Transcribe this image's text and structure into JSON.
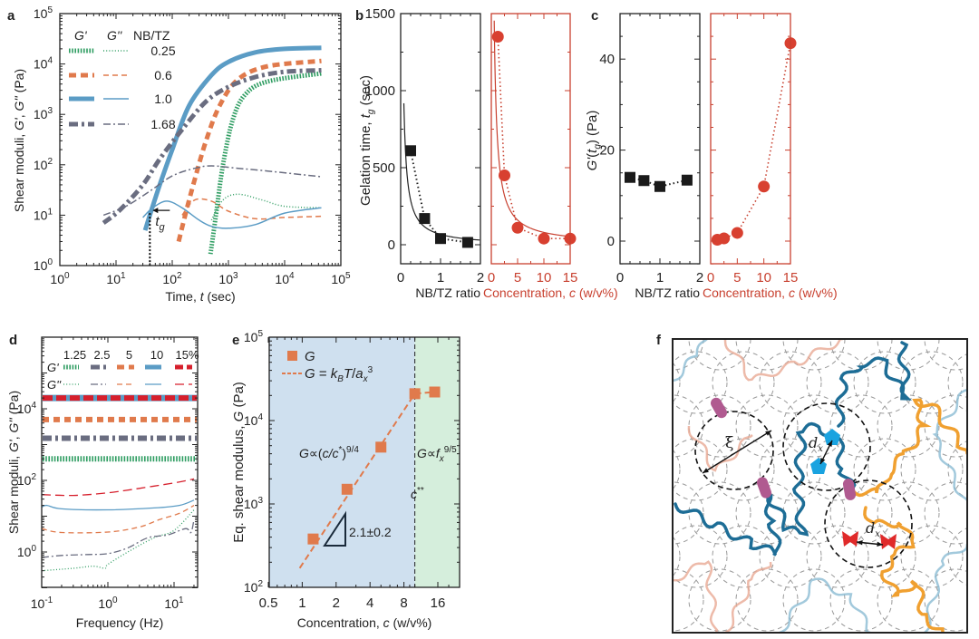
{
  "panel_labels": {
    "a": "a",
    "b": "b",
    "c": "c",
    "d": "d",
    "e": "e",
    "f": "f"
  },
  "chart_data": [
    {
      "panel": "a",
      "type": "line",
      "xscale": "log",
      "yscale": "log",
      "xlim": [
        1,
        100000
      ],
      "ylim": [
        1,
        100000
      ],
      "x_tick_exponents": [
        0,
        1,
        2,
        3,
        4,
        5
      ],
      "y_tick_exponents": [
        0,
        1,
        2,
        3,
        4,
        5
      ],
      "xlabel": [
        {
          "t": "Time, "
        },
        {
          "t": "t",
          "i": 1
        },
        {
          "t": " (sec)"
        }
      ],
      "ylabel": [
        {
          "t": "Shear moduli, "
        },
        {
          "t": "G'",
          "i": 1
        },
        {
          "t": ", "
        },
        {
          "t": "G''",
          "i": 1
        },
        {
          "t": " (Pa)"
        }
      ],
      "legend": {
        "g1": "G'",
        "g2": "G''",
        "ratio": "NB/TZ"
      },
      "series": [
        {
          "name": "0.25",
          "color": "#2f9d62",
          "style": "dotted",
          "G1": [
            [
              480,
              1.7
            ],
            [
              600,
              10
            ],
            [
              800,
              100
            ],
            [
              1200,
              800
            ],
            [
              2000,
              2500
            ],
            [
              5000,
              4500
            ],
            [
              45000,
              6500
            ]
          ],
          "G2": [
            [
              500,
              8
            ],
            [
              800,
              20
            ],
            [
              1500,
              26
            ],
            [
              4000,
              20
            ],
            [
              10000,
              15
            ],
            [
              45000,
              14
            ]
          ]
        },
        {
          "name": "0.6",
          "color": "#e07a4c",
          "style": "dashed",
          "G1": [
            [
              130,
              3
            ],
            [
              170,
              10
            ],
            [
              250,
              50
            ],
            [
              400,
              300
            ],
            [
              700,
              1500
            ],
            [
              1500,
              5000
            ],
            [
              5000,
              9000
            ],
            [
              45000,
              11500
            ]
          ],
          "G2": [
            [
              150,
              10
            ],
            [
              250,
              20
            ],
            [
              500,
              19
            ],
            [
              1000,
              12
            ],
            [
              3000,
              8.5
            ],
            [
              10000,
              9
            ],
            [
              45000,
              9.5
            ]
          ]
        },
        {
          "name": "1.0",
          "color": "#5b9cc5",
          "style": "solid",
          "G1": [
            [
              33,
              5
            ],
            [
              40,
              10
            ],
            [
              60,
              40
            ],
            [
              100,
              200
            ],
            [
              200,
              1500
            ],
            [
              500,
              6000
            ],
            [
              1000,
              11000
            ],
            [
              3000,
              17000
            ],
            [
              10000,
              20000
            ],
            [
              45000,
              21000
            ]
          ],
          "G2": [
            [
              30,
              9
            ],
            [
              45,
              14
            ],
            [
              80,
              19
            ],
            [
              150,
              14
            ],
            [
              300,
              8
            ],
            [
              500,
              6
            ],
            [
              1000,
              5.5
            ],
            [
              3000,
              6.5
            ],
            [
              10000,
              11
            ],
            [
              45000,
              14
            ]
          ]
        },
        {
          "name": "1.68",
          "color": "#6a6d80",
          "style": "dashdot",
          "G1": [
            [
              6,
              7
            ],
            [
              12,
              13
            ],
            [
              30,
              40
            ],
            [
              60,
              130
            ],
            [
              150,
              500
            ],
            [
              400,
              1800
            ],
            [
              1000,
              3500
            ],
            [
              3000,
              5500
            ],
            [
              10000,
              7000
            ],
            [
              45000,
              7500
            ]
          ],
          "G2": [
            [
              6,
              10
            ],
            [
              15,
              15
            ],
            [
              40,
              30
            ],
            [
              100,
              60
            ],
            [
              250,
              85
            ],
            [
              500,
              95
            ],
            [
              1500,
              85
            ],
            [
              5000,
              75
            ],
            [
              45000,
              58
            ]
          ]
        }
      ],
      "annotation": {
        "t": "t",
        "sub": "g",
        "x": 40,
        "y": 11
      }
    },
    {
      "panel": "b",
      "type": "scatter",
      "ylabel": [
        {
          "t": "Gelation time, "
        },
        {
          "t": "t",
          "i": 1
        },
        {
          "t": "g",
          "i": 1,
          "sub": 1
        },
        {
          "t": " (sec)"
        }
      ],
      "ylim": [
        -120,
        1500
      ],
      "y_ticks": [
        0,
        500,
        1000,
        1500
      ],
      "left": {
        "xlabel": "NB/TZ ratio",
        "xlim": [
          0,
          2
        ],
        "x_ticks": [
          0,
          1,
          2
        ],
        "x": [
          0.25,
          0.6,
          1.0,
          1.68
        ],
        "y": [
          610,
          170,
          40,
          15
        ],
        "fit": "74/x-7"
      },
      "right": {
        "xlabel": [
          {
            "t": "Concentration, "
          },
          {
            "t": "c",
            "i": 1
          },
          {
            "t": " (w/v%)"
          }
        ],
        "xlim": [
          0,
          15
        ],
        "x_ticks": [
          0,
          5,
          10,
          15
        ],
        "x": [
          1.25,
          2.5,
          5,
          10,
          15
        ],
        "y": [
          1350,
          450,
          110,
          40,
          40
        ],
        "fit": "800/x"
      }
    },
    {
      "panel": "c",
      "type": "scatter",
      "ylabel": [
        {
          "t": "G'",
          "i": 1
        },
        {
          "t": "("
        },
        {
          "t": "t",
          "i": 1
        },
        {
          "t": "g",
          "i": 1,
          "sub": 1
        },
        {
          "t": ") (Pa)"
        }
      ],
      "ylim": [
        -5,
        50
      ],
      "y_ticks": [
        0,
        20,
        40
      ],
      "left": {
        "xlabel": "NB/TZ ratio",
        "xlim": [
          0,
          2
        ],
        "x_ticks": [
          0,
          1,
          2
        ],
        "x": [
          0.25,
          0.6,
          1.0,
          1.68
        ],
        "y": [
          14,
          13.3,
          12,
          13.4
        ]
      },
      "right": {
        "xlabel": [
          {
            "t": "Concentration, "
          },
          {
            "t": "c",
            "i": 1
          },
          {
            "t": " (w/v%)"
          }
        ],
        "xlim": [
          0,
          15
        ],
        "x_ticks": [
          0,
          5,
          10,
          15
        ],
        "x": [
          1.25,
          2.5,
          5,
          10,
          15
        ],
        "y": [
          0.3,
          0.6,
          1.8,
          12,
          43.5
        ]
      }
    },
    {
      "panel": "d",
      "type": "line",
      "xscale": "log",
      "yscale": "log",
      "xlim": [
        0.1,
        22
      ],
      "ylim": [
        0.1,
        1000000
      ],
      "x_tick_exponents": [
        -1,
        0,
        1
      ],
      "y_tick_exponents": [
        0,
        2,
        4
      ],
      "xlabel": "Frequency (Hz)",
      "ylabel": [
        {
          "t": "Shear moduli, "
        },
        {
          "t": "G'",
          "i": 1
        },
        {
          "t": ", "
        },
        {
          "t": "G''",
          "i": 1
        },
        {
          "t": " (Pa)"
        }
      ],
      "legend": {
        "g1": "G'",
        "g2": "G''"
      },
      "series": [
        {
          "name": "1.25",
          "color": "#2f9d62",
          "style": "dotted",
          "G1": 400,
          "G2": [
            [
              0.1,
              0.3
            ],
            [
              0.3,
              0.35
            ],
            [
              0.6,
              0.4
            ],
            [
              0.9,
              0.35
            ],
            [
              1,
              0.45
            ],
            [
              2,
              1
            ],
            [
              5,
              2.5
            ],
            [
              10,
              4
            ],
            [
              20,
              15
            ]
          ]
        },
        {
          "name": "2.5",
          "color": "#6a6d80",
          "style": "dashdot",
          "G1": 1500,
          "G2": [
            [
              0.1,
              0.7
            ],
            [
              0.2,
              0.8
            ],
            [
              0.5,
              0.85
            ],
            [
              1,
              0.9
            ],
            [
              2,
              1.3
            ],
            [
              4,
              2.5
            ],
            [
              8,
              3
            ],
            [
              15,
              4.5
            ],
            [
              18,
              3.5
            ],
            [
              20,
              8
            ]
          ]
        },
        {
          "name": "5",
          "color": "#e07a4c",
          "style": "dashed",
          "G1": 5000,
          "G2": [
            [
              0.1,
              4.5
            ],
            [
              0.2,
              3.5
            ],
            [
              1,
              3.6
            ],
            [
              3,
              5
            ],
            [
              6,
              8
            ],
            [
              12,
              12
            ],
            [
              20,
              20
            ]
          ]
        },
        {
          "name": "10",
          "color": "#5b9cc5",
          "style": "solid",
          "G1": 20000,
          "G2": [
            [
              0.1,
              18
            ],
            [
              0.12,
              20
            ],
            [
              0.2,
              16
            ],
            [
              1,
              15
            ],
            [
              5,
              17
            ],
            [
              12,
              20
            ],
            [
              20,
              28
            ]
          ]
        },
        {
          "name": "15%",
          "color": "#d61f2c",
          "style": "longdash",
          "G1": 20000,
          "G2": [
            [
              0.1,
              40
            ],
            [
              0.3,
              38
            ],
            [
              1,
              45
            ],
            [
              3,
              60
            ],
            [
              10,
              85
            ],
            [
              20,
              110
            ]
          ]
        }
      ]
    },
    {
      "panel": "e",
      "type": "scatter",
      "xscale": "log2",
      "yscale": "log",
      "xlim": [
        0.5,
        25
      ],
      "ylim": [
        100,
        100000
      ],
      "x_ticks": [
        0.5,
        1,
        2,
        4,
        8,
        16
      ],
      "y_tick_exponents": [
        2,
        3,
        4,
        5
      ],
      "xlabel": [
        {
          "t": "Concentration, "
        },
        {
          "t": "c",
          "i": 1
        },
        {
          "t": " (w/v%)"
        }
      ],
      "ylabel": [
        {
          "t": "Eq. shear modulus, "
        },
        {
          "t": "G",
          "i": 1
        },
        {
          "t": " (Pa)"
        }
      ],
      "points": {
        "x": [
          1.25,
          2.5,
          5,
          10,
          15
        ],
        "y": [
          380,
          1500,
          4800,
          21000,
          22000
        ]
      },
      "fit_line": {
        "x": [
          0.95,
          10
        ],
        "y": [
          170,
          21000
        ]
      },
      "plateau_line": {
        "x": [
          10,
          15
        ],
        "y": [
          21000,
          22000
        ]
      },
      "c_double_star": 10,
      "legend": {
        "points": [
          {
            "t": "G",
            "i": 1
          }
        ],
        "fit": [
          {
            "t": "G",
            "i": 1
          },
          {
            "t": " = "
          },
          {
            "t": "k",
            "i": 1
          },
          {
            "t": "B",
            "i": 1,
            "sub": 1
          },
          {
            "t": "T",
            "i": 1
          },
          {
            "t": "/"
          },
          {
            "t": "a",
            "i": 1
          },
          {
            "t": "x",
            "i": 1,
            "sub": 1
          },
          {
            "t": "3",
            "sup": 1
          }
        ]
      },
      "annotations": {
        "semi_dilute": [
          {
            "t": "G",
            "i": 1
          },
          {
            "t": "∝("
          },
          {
            "t": "c/c",
            "i": 1
          },
          {
            "t": "*",
            "sup": 1
          },
          {
            "t": ")"
          },
          {
            "t": "9/4",
            "sup": 1
          }
        ],
        "above": [
          {
            "t": "G",
            "i": 1
          },
          {
            "t": "∝"
          },
          {
            "t": "f",
            "i": 1
          },
          {
            "t": "x",
            "i": 1,
            "sub": 1
          },
          {
            "t": "9/5",
            "sup": 1
          }
        ],
        "c_star": [
          {
            "t": "c",
            "i": 1
          },
          {
            "t": "**",
            "sup": 1
          }
        ],
        "slope": "2.1±0.2"
      },
      "colors": {
        "semi_dilute_bg": "#cfe0ef",
        "above_bg": "#d5eedc",
        "points": "#e07a4c"
      }
    }
  ],
  "schematic_f": {
    "xi": "ξ",
    "dx": [
      {
        "t": "d",
        "i": 1
      },
      {
        "t": "x",
        "i": 1,
        "sub": 1
      }
    ]
  }
}
